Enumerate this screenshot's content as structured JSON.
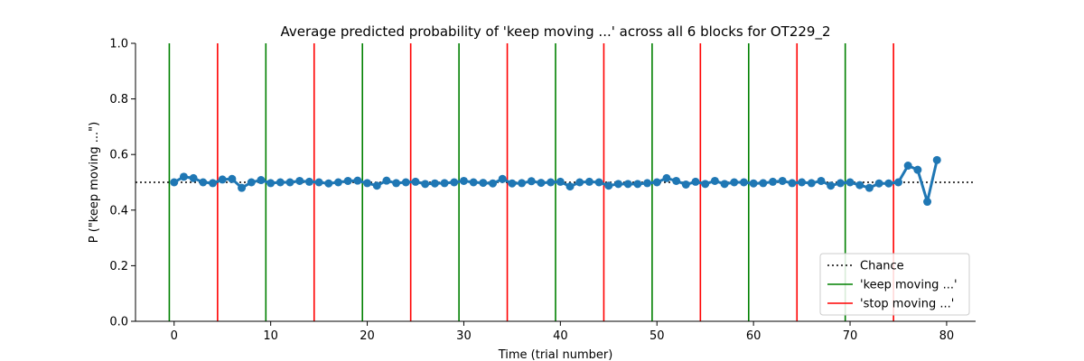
{
  "chart_data": {
    "type": "line",
    "title": "Average predicted probability of 'keep moving ...' across all 6 blocks for OT229_2",
    "xlabel": "Time (trial number)",
    "ylabel": "P (\"keep moving ...\")",
    "xlim": [
      -4,
      83
    ],
    "ylim": [
      0,
      1
    ],
    "xticks": [
      0,
      10,
      20,
      30,
      40,
      50,
      60,
      70,
      80
    ],
    "yticks": [
      0.0,
      0.2,
      0.4,
      0.6,
      0.8,
      1.0
    ],
    "xtick_labels": [
      "0",
      "10",
      "20",
      "30",
      "40",
      "50",
      "60",
      "70",
      "80"
    ],
    "ytick_labels": [
      "0.0",
      "0.2",
      "0.4",
      "0.6",
      "0.8",
      "1.0"
    ],
    "grid": false,
    "legend_position": "lower-right",
    "chance_level": 0.5,
    "keep_moving_lines": [
      -0.5,
      9.5,
      19.5,
      29.5,
      39.5,
      49.5,
      59.5,
      69.5
    ],
    "stop_moving_lines": [
      4.5,
      14.5,
      24.5,
      34.5,
      44.5,
      54.5,
      64.5,
      74.5
    ],
    "colors": {
      "series": "#1f77b4",
      "keep": "#008000",
      "stop": "#ff0000",
      "chance": "#000000"
    },
    "legend": [
      {
        "label": "Chance",
        "style": "dotted",
        "color": "#000000"
      },
      {
        "label": "'keep moving ...'",
        "style": "solid",
        "color": "#008000"
      },
      {
        "label": "'stop moving ...'",
        "style": "solid",
        "color": "#ff0000"
      }
    ],
    "series": [
      {
        "x": [
          0,
          1,
          2,
          3,
          4,
          5,
          6,
          7,
          8,
          9,
          10,
          11,
          12,
          13,
          14,
          15,
          16,
          17,
          18,
          19,
          20,
          21,
          22,
          23,
          24,
          25,
          26,
          27,
          28,
          29,
          30,
          31,
          32,
          33,
          34,
          35,
          36,
          37,
          38,
          39,
          40,
          41,
          42,
          43,
          44,
          45,
          46,
          47,
          48,
          49,
          50,
          51,
          52,
          53,
          54,
          55,
          56,
          57,
          58,
          59,
          60,
          61,
          62,
          63,
          64,
          65,
          66,
          67,
          68,
          69,
          70,
          71,
          72,
          73,
          74,
          75,
          76,
          77,
          78,
          79
        ],
        "values": [
          0.5,
          0.52,
          0.515,
          0.5,
          0.497,
          0.51,
          0.512,
          0.48,
          0.5,
          0.508,
          0.497,
          0.5,
          0.5,
          0.505,
          0.502,
          0.5,
          0.496,
          0.5,
          0.505,
          0.506,
          0.497,
          0.488,
          0.506,
          0.497,
          0.5,
          0.502,
          0.494,
          0.496,
          0.497,
          0.5,
          0.505,
          0.5,
          0.498,
          0.496,
          0.512,
          0.496,
          0.497,
          0.504,
          0.498,
          0.5,
          0.502,
          0.485,
          0.5,
          0.502,
          0.5,
          0.488,
          0.494,
          0.494,
          0.494,
          0.497,
          0.5,
          0.515,
          0.505,
          0.492,
          0.502,
          0.494,
          0.505,
          0.494,
          0.5,
          0.5,
          0.496,
          0.497,
          0.502,
          0.505,
          0.497,
          0.5,
          0.497,
          0.505,
          0.488,
          0.497,
          0.5,
          0.49,
          0.48,
          0.496,
          0.496,
          0.5,
          0.56,
          0.545,
          0.43,
          0.58
        ]
      }
    ]
  }
}
